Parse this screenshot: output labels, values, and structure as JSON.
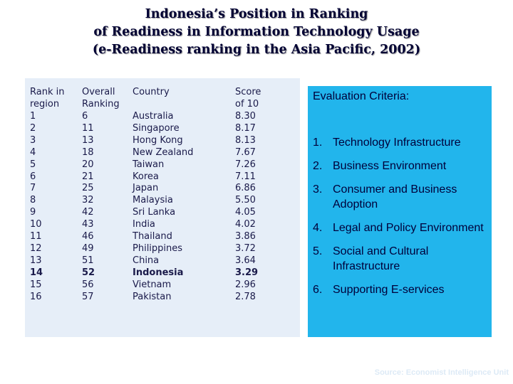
{
  "title": {
    "line1": "Indonesia’s Position in Ranking",
    "line2": "of Readiness in Information Technology Usage",
    "line3": "(e-Readiness ranking in the Asia Pacific, 2002)"
  },
  "table": {
    "headers": {
      "rank_region": [
        "Rank in",
        "region"
      ],
      "overall": [
        "Overall",
        "Ranking"
      ],
      "country": [
        "Country"
      ],
      "score": [
        "Score",
        "of 10"
      ]
    },
    "rows": [
      {
        "rank": "1",
        "overall": "6",
        "country": "Australia",
        "score": "8.30"
      },
      {
        "rank": "2",
        "overall": "11",
        "country": "Singapore",
        "score": "8.17"
      },
      {
        "rank": "3",
        "overall": "13",
        "country": "Hong Kong",
        "score": "8.13"
      },
      {
        "rank": "4",
        "overall": "18",
        "country": "New Zealand",
        "score": "7.67"
      },
      {
        "rank": "5",
        "overall": "20",
        "country": "Taiwan",
        "score": "7.26"
      },
      {
        "rank": "6",
        "overall": "21",
        "country": "Korea",
        "score": "7.11"
      },
      {
        "rank": "7",
        "overall": "25",
        "country": "Japan",
        "score": "6.86"
      },
      {
        "rank": "8",
        "overall": "32",
        "country": "Malaysia",
        "score": "5.50"
      },
      {
        "rank": "9",
        "overall": "42",
        "country": "Sri Lanka",
        "score": "4.05"
      },
      {
        "rank": "10",
        "overall": "43",
        "country": "India",
        "score": "4.02"
      },
      {
        "rank": "11",
        "overall": "46",
        "country": "Thailand",
        "score": "3.86"
      },
      {
        "rank": "12",
        "overall": "49",
        "country": "Philippines",
        "score": "3.72"
      },
      {
        "rank": "13",
        "overall": "51",
        "country": "China",
        "score": "3.64"
      },
      {
        "rank": "14",
        "overall": "52",
        "country": "Indonesia",
        "score": "3.29"
      },
      {
        "rank": "15",
        "overall": "56",
        "country": "Vietnam",
        "score": "2.96"
      },
      {
        "rank": "16",
        "overall": "57",
        "country": "Pakistan",
        "score": "2.78"
      }
    ],
    "highlight_row": 13
  },
  "criteria": {
    "title": "Evaluation Criteria:",
    "items": [
      {
        "num": "1.",
        "text": "Technology Infrastructure"
      },
      {
        "num": "2.",
        "text": "Business Environment"
      },
      {
        "num": "3.",
        "text": "Consumer and Business Adoption"
      },
      {
        "num": "4.",
        "text": "Legal and Policy Environment"
      },
      {
        "num": "5.",
        "text": "Social and Cultural Infrastructure"
      },
      {
        "num": "6.",
        "text": "Supporting E-services"
      }
    ]
  },
  "source": "Source: Economist Intelligence Unit",
  "colors": {
    "criteria_background": "#22b5ec",
    "table_background": "#e6eef8",
    "title_text": "#000033"
  }
}
